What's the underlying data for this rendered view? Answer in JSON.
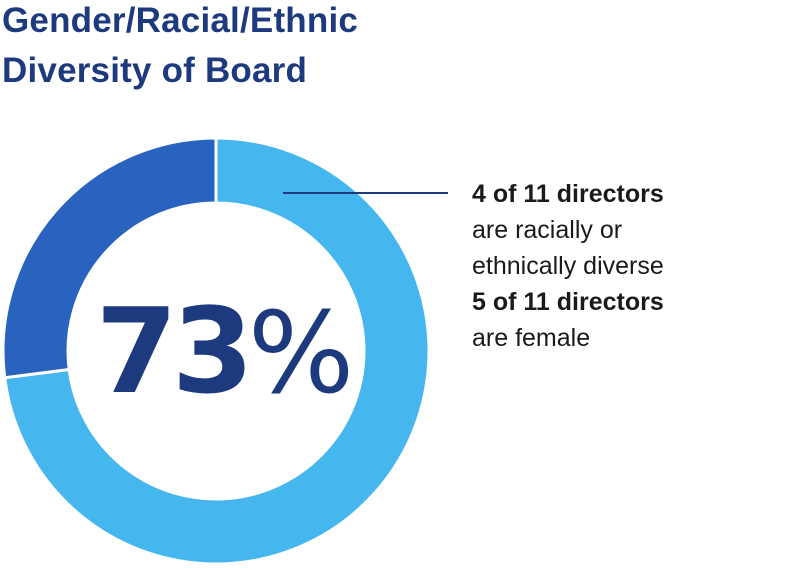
{
  "title": {
    "line1": "Gender/Racial/Ethnic",
    "line2": "Diversity of Board"
  },
  "center": {
    "value": "73",
    "unit": "%"
  },
  "notes": [
    {
      "text": "4 of 11 directors",
      "bold": true
    },
    {
      "text": "are racially or",
      "bold": false
    },
    {
      "text": "ethnically diverse",
      "bold": false
    },
    {
      "text": "5 of 11 directors",
      "bold": true
    },
    {
      "text": "are female",
      "bold": false
    }
  ],
  "chart_data": {
    "type": "pie",
    "title": "Gender/Racial/Ethnic Diversity of Board",
    "categories": [
      "",
      ""
    ],
    "values": [
      73,
      27
    ],
    "colors": [
      "#45b6ee",
      "#2a63bf"
    ],
    "center_label": "73%",
    "legend": "none"
  },
  "colors": {
    "title": "#1d3a7e",
    "center_text": "#1d3a7e",
    "leader_line": "#1d3a7e",
    "text": "#1a1a1a"
  }
}
